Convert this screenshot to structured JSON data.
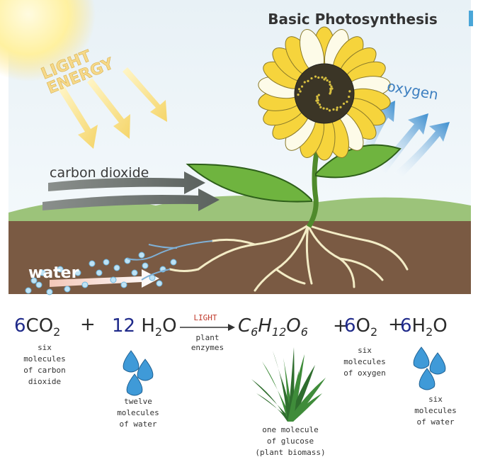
{
  "title": "Basic Photosynthesis",
  "labels": {
    "light_energy": [
      "LIGHT",
      "ENERGY"
    ],
    "oxygen": "oxygen",
    "carbon_dioxide": "carbon dioxide",
    "water": "water"
  },
  "equation": {
    "terms": [
      [
        "6",
        "CO",
        "2"
      ],
      [
        "12",
        " H",
        "2",
        "O"
      ],
      [
        "C",
        "6",
        "H",
        "12",
        "O",
        "6"
      ],
      [
        "6",
        "O",
        "2"
      ],
      [
        "6",
        "H",
        "2",
        "O"
      ]
    ],
    "operators": [
      "+",
      "+",
      "+"
    ],
    "arrow_above": "LIGHT",
    "arrow_below": [
      "plant",
      "enzymes"
    ]
  },
  "captions": [
    [
      "six",
      "molecules",
      "of carbon",
      "dioxide"
    ],
    [
      "twelve",
      "molecules",
      "of water"
    ],
    [
      "one molecule",
      "of glucose",
      "(plant biomass)"
    ],
    [
      "six",
      "molecules",
      "of oxygen"
    ],
    [
      "six",
      "molecules",
      "of water"
    ]
  ]
}
